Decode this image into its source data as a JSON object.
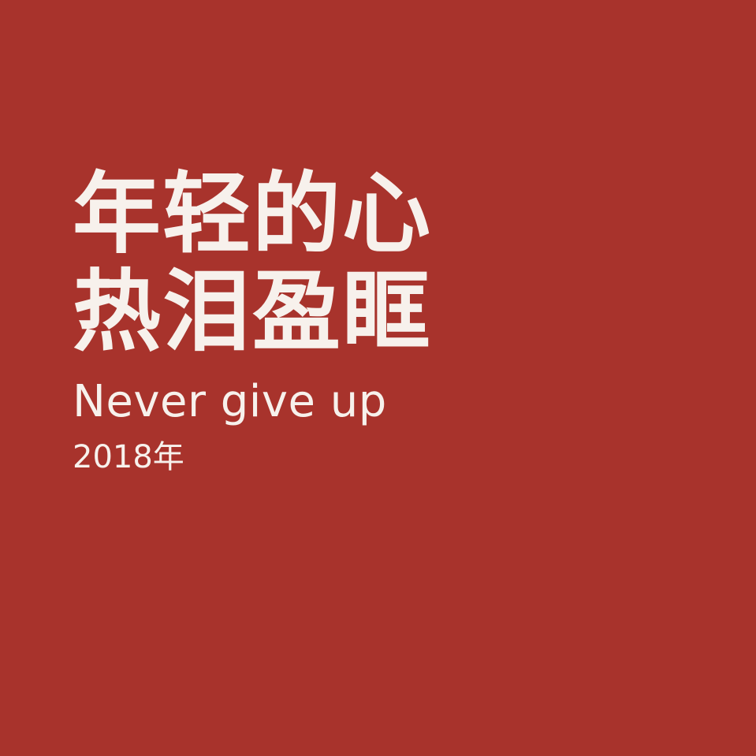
{
  "poster": {
    "title_line_1": "年轻的心",
    "title_line_2": "热泪盈眶",
    "subtitle": "Never give up",
    "year": "2018年"
  },
  "colors": {
    "background": "#a8332c",
    "text": "#f7f1ec"
  }
}
